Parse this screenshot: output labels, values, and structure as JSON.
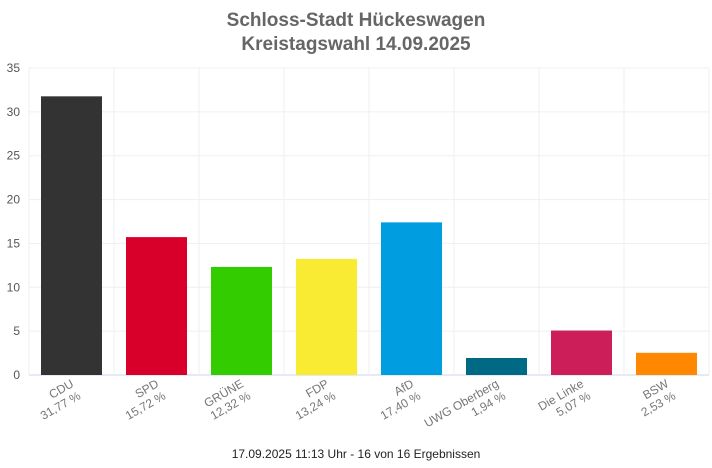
{
  "chart_data": {
    "type": "bar",
    "title_lines": [
      "Schloss-Stadt Hückeswagen",
      "Kreistagswahl 14.09.2025"
    ],
    "categories": [
      "CDU",
      "SPD",
      "GRÜNE",
      "FDP",
      "AfD",
      "UWG Oberberg",
      "Die Linke",
      "BSW"
    ],
    "value_labels": [
      "31,77 %",
      "15,72 %",
      "12,32 %",
      "13,24 %",
      "17,40 %",
      "1,94 %",
      "5,07 %",
      "2,53 %"
    ],
    "values": [
      31.77,
      15.72,
      12.32,
      13.24,
      17.4,
      1.94,
      5.07,
      2.53
    ],
    "colors": [
      "#333333",
      "#d8002a",
      "#33cc00",
      "#f9eb33",
      "#009ee0",
      "#006983",
      "#cc1f5a",
      "#ff8800"
    ],
    "ylim": [
      0,
      35
    ],
    "yticks": [
      0,
      5,
      10,
      15,
      20,
      25,
      30,
      35
    ],
    "grid": true,
    "xlabel": "",
    "ylabel": ""
  },
  "footer": "17.09.2025 11:13 Uhr - 16 von 16 Ergebnissen"
}
